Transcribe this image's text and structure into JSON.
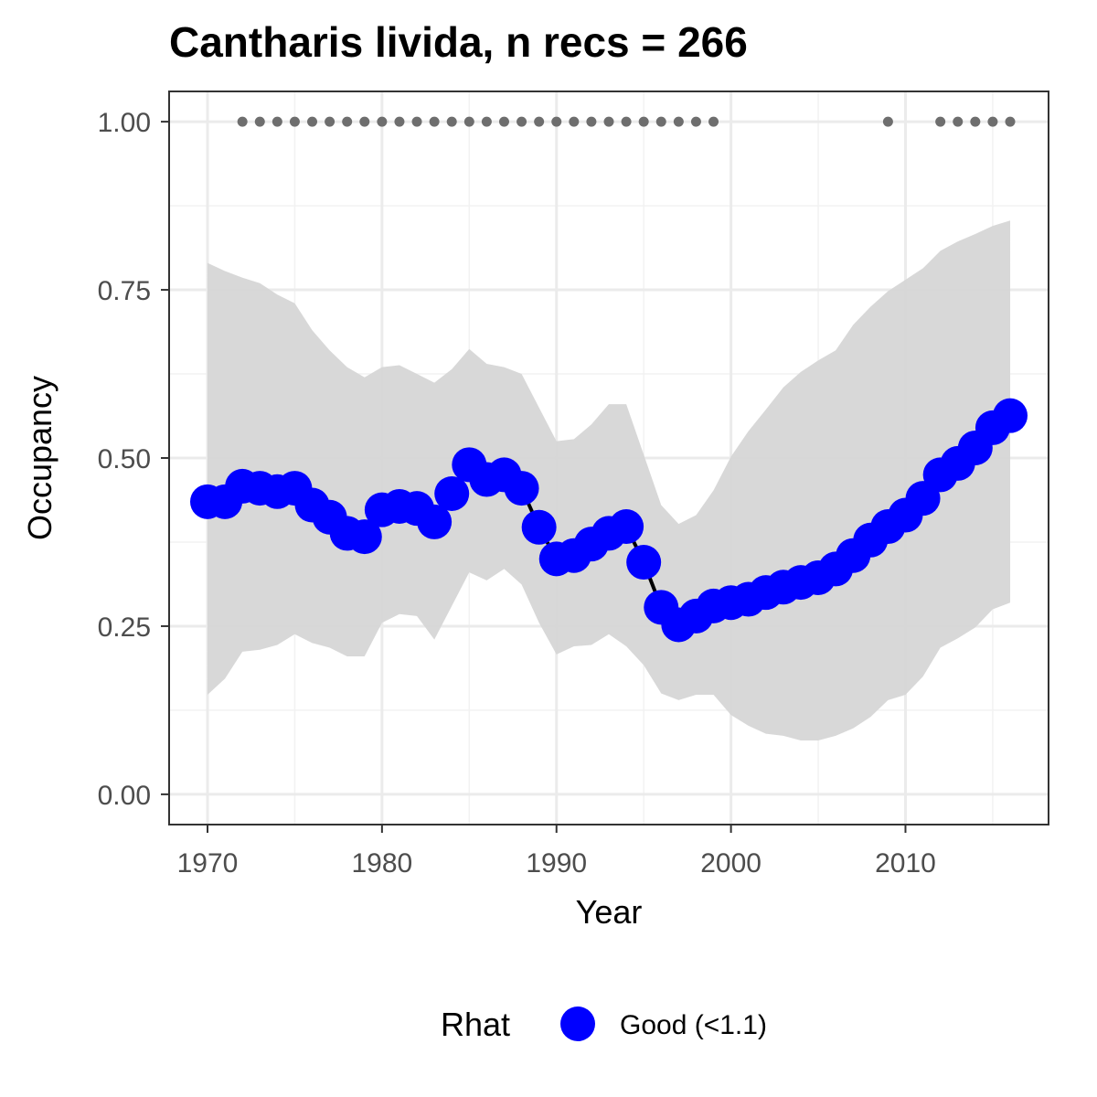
{
  "chart_data": {
    "type": "line",
    "title": "Cantharis livida, n recs = 266",
    "xlabel": "Year",
    "ylabel": "Occupancy",
    "xlim": [
      1967.8,
      2018.2
    ],
    "ylim": [
      -0.045,
      1.045
    ],
    "xticks": [
      1970,
      1980,
      1990,
      2000,
      2010
    ],
    "yticks": [
      0.0,
      0.25,
      0.5,
      0.75,
      1.0
    ],
    "ytick_labels": [
      "0.00",
      "0.25",
      "0.50",
      "0.75",
      "1.00"
    ],
    "grid": true,
    "legend_position": "bottom",
    "legend": {
      "title": "Rhat",
      "label": "Good (<1.1)"
    },
    "colors": {
      "line_points": "#0000ff",
      "ribbon": "#d6d6d6",
      "record_dots": "#6e6e6e",
      "trend_line": "#000000"
    },
    "x": [
      1970,
      1971,
      1972,
      1973,
      1974,
      1975,
      1976,
      1977,
      1978,
      1979,
      1980,
      1981,
      1982,
      1983,
      1984,
      1985,
      1986,
      1987,
      1988,
      1989,
      1990,
      1991,
      1992,
      1993,
      1994,
      1995,
      1996,
      1997,
      1998,
      1999,
      2000,
      2001,
      2002,
      2003,
      2004,
      2005,
      2006,
      2007,
      2008,
      2009,
      2010,
      2011,
      2012,
      2013,
      2014,
      2015,
      2016
    ],
    "series": [
      {
        "name": "Good (<1.1)",
        "values": [
          0.435,
          0.435,
          0.458,
          0.455,
          0.45,
          0.455,
          0.43,
          0.412,
          0.388,
          0.383,
          0.423,
          0.428,
          0.425,
          0.405,
          0.447,
          0.49,
          0.468,
          0.475,
          0.455,
          0.397,
          0.35,
          0.355,
          0.372,
          0.388,
          0.398,
          0.345,
          0.278,
          0.252,
          0.265,
          0.28,
          0.285,
          0.29,
          0.3,
          0.308,
          0.315,
          0.322,
          0.335,
          0.355,
          0.378,
          0.398,
          0.415,
          0.44,
          0.475,
          0.492,
          0.515,
          0.545,
          0.563
        ]
      }
    ],
    "ribbon_lower": [
      0.148,
      0.172,
      0.212,
      0.215,
      0.222,
      0.238,
      0.225,
      0.218,
      0.205,
      0.205,
      0.255,
      0.268,
      0.265,
      0.23,
      0.28,
      0.33,
      0.318,
      0.335,
      0.312,
      0.255,
      0.208,
      0.22,
      0.222,
      0.238,
      0.22,
      0.192,
      0.15,
      0.14,
      0.148,
      0.148,
      0.118,
      0.102,
      0.09,
      0.087,
      0.08,
      0.08,
      0.087,
      0.098,
      0.115,
      0.14,
      0.148,
      0.175,
      0.218,
      0.232,
      0.248,
      0.275,
      0.285
    ],
    "ribbon_upper": [
      0.79,
      0.778,
      0.768,
      0.76,
      0.743,
      0.73,
      0.69,
      0.66,
      0.635,
      0.62,
      0.635,
      0.638,
      0.625,
      0.612,
      0.632,
      0.662,
      0.64,
      0.635,
      0.625,
      0.575,
      0.525,
      0.528,
      0.55,
      0.58,
      0.58,
      0.505,
      0.43,
      0.402,
      0.415,
      0.452,
      0.502,
      0.54,
      0.572,
      0.605,
      0.628,
      0.645,
      0.66,
      0.698,
      0.725,
      0.748,
      0.765,
      0.782,
      0.808,
      0.822,
      0.833,
      0.845,
      0.853
    ],
    "record_years": [
      1972,
      1973,
      1974,
      1975,
      1976,
      1977,
      1978,
      1979,
      1980,
      1981,
      1982,
      1983,
      1984,
      1985,
      1986,
      1987,
      1988,
      1989,
      1990,
      1991,
      1992,
      1993,
      1994,
      1995,
      1996,
      1997,
      1998,
      1999,
      2009,
      2012,
      2013,
      2014,
      2015,
      2016
    ],
    "record_value": 1.0
  }
}
